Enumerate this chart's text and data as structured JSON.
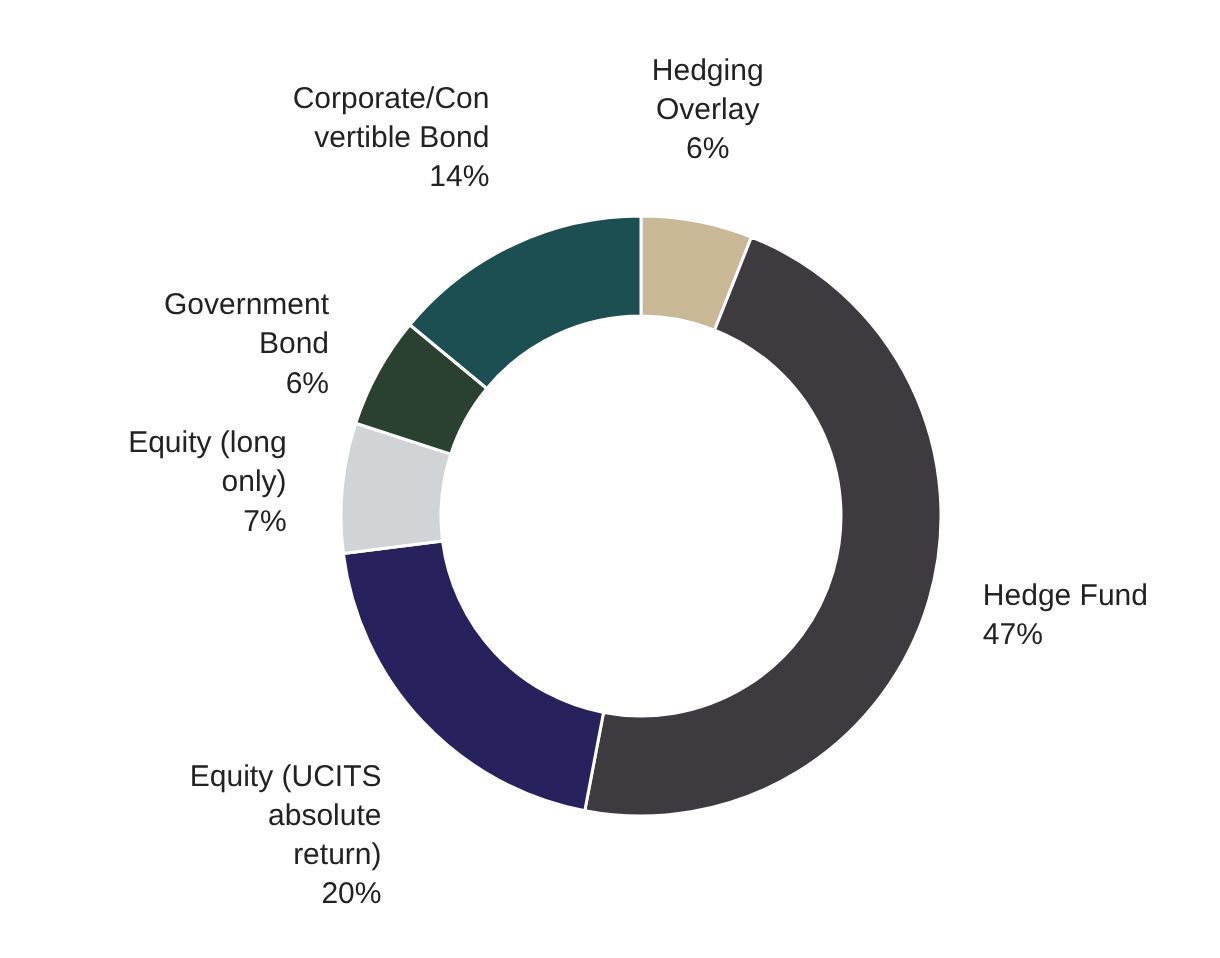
{
  "chart_data": {
    "type": "donut",
    "categories": [
      "Hedging\nOverlay",
      "Hedge Fund",
      "Equity (UCITS\nabsolute\nreturn)",
      "Equity (long\nonly)",
      "Government\nBond",
      "Corporate/Con\nvertible Bond"
    ],
    "values": [
      6,
      47,
      20,
      7,
      6,
      14
    ],
    "colors": [
      "#c8b896",
      "#3d3b40",
      "#27225e",
      "#d0d4d6",
      "#2a4030",
      "#1b4f52"
    ],
    "value_labels": [
      "6%",
      "47%",
      "20%",
      "7%",
      "6%",
      "14%"
    ]
  }
}
